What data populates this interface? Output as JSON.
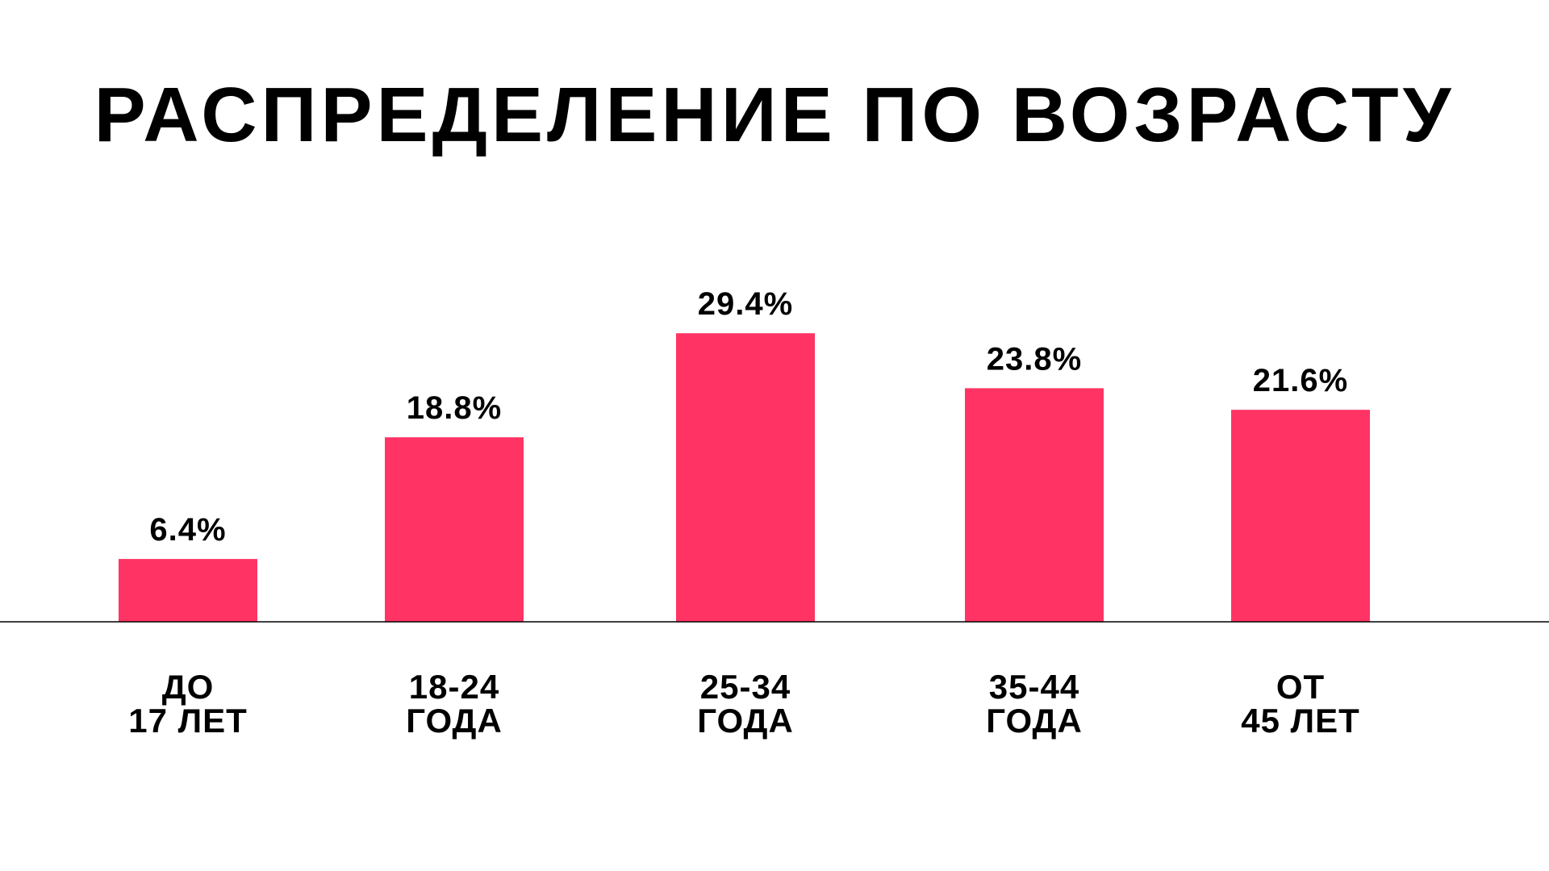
{
  "chart_data": {
    "type": "bar",
    "title": "РАСПРЕДЕЛЕНИЕ ПО ВОЗРАСТУ",
    "categories": [
      [
        "ДО",
        "17 ЛЕТ"
      ],
      [
        "18-24",
        "ГОДА"
      ],
      [
        "25-34",
        "ГОДА"
      ],
      [
        "35-44",
        "ГОДА"
      ],
      [
        "ОТ",
        "45 ЛЕТ"
      ]
    ],
    "values": [
      6.4,
      18.8,
      29.4,
      23.8,
      21.6
    ],
    "value_labels": [
      "6.4%",
      "18.8%",
      "29.4%",
      "23.8%",
      "21.6%"
    ],
    "xlabel": "",
    "ylabel": "",
    "ylim": [
      0,
      35
    ],
    "grid": false,
    "legend": "none",
    "bar_color": "#FF3464",
    "axis_color": "#000000"
  }
}
